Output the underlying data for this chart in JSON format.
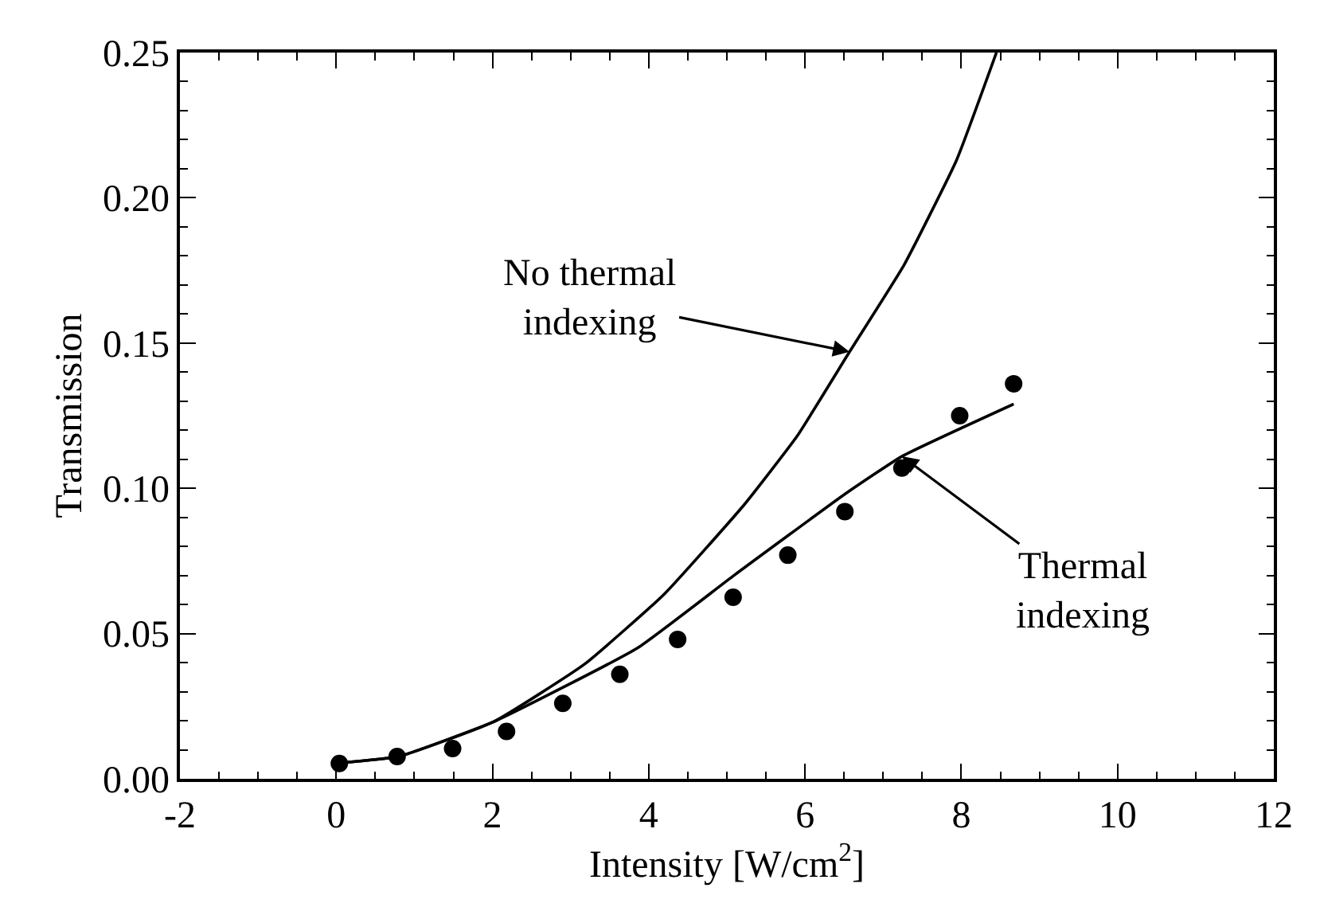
{
  "chart_data": {
    "type": "line",
    "xlabel": "Intensity [W/cm$^{2}$]",
    "ylabel": "Transmission",
    "xlim": [
      -2,
      12
    ],
    "ylim": [
      0,
      0.25
    ],
    "xticks": [
      -2,
      0,
      2,
      4,
      6,
      8,
      10,
      12
    ],
    "yticks": [
      {
        "value": 0,
        "label": "0.00"
      },
      {
        "value": 0.05,
        "label": "0.05"
      },
      {
        "value": 0.1,
        "label": "0.10"
      },
      {
        "value": 0.15,
        "label": "0.15"
      },
      {
        "value": 0.2,
        "label": "0.20"
      },
      {
        "value": 0.25,
        "label": "0.25"
      }
    ],
    "series": [
      {
        "color": "#000000",
        "marker": "none",
        "line_style": "solid",
        "x": [
          0.04,
          0.8,
          2.02,
          3.18,
          4.2,
          5.22,
          5.9,
          6.57,
          7.27,
          7.94,
          8.45
        ],
        "values": [
          0.0055,
          0.0077,
          0.0197,
          0.0395,
          0.0636,
          0.0943,
          0.118,
          0.147,
          0.177,
          0.213,
          0.25
        ]
      },
      {
        "color": "#000000",
        "marker": "none",
        "line_style": "solid",
        "x": [
          0.04,
          0.8,
          2.02,
          3.86,
          5.08,
          6.51,
          7.24,
          8.67
        ],
        "values": [
          0.0055,
          0.0077,
          0.0197,
          0.0451,
          0.0698,
          0.098,
          0.111,
          0.129
        ]
      },
      {
        "type": "scatter",
        "color": "#000000",
        "marker": "circle",
        "x": [
          0.04,
          0.78,
          1.49,
          2.18,
          2.9,
          3.63,
          4.37,
          5.08,
          5.78,
          6.51,
          7.24,
          7.98,
          8.67
        ],
        "values": [
          0.0053,
          0.0077,
          0.0104,
          0.0163,
          0.026,
          0.036,
          0.048,
          0.0625,
          0.077,
          0.092,
          0.107,
          0.125,
          0.136
        ]
      }
    ],
    "annotations": [
      {
        "text": "No thermal\nindexing",
        "x": 6.57,
        "y": 0.147
      },
      {
        "text": "Thermal\nindexing",
        "x": 7.24,
        "y": 0.111
      }
    ]
  }
}
